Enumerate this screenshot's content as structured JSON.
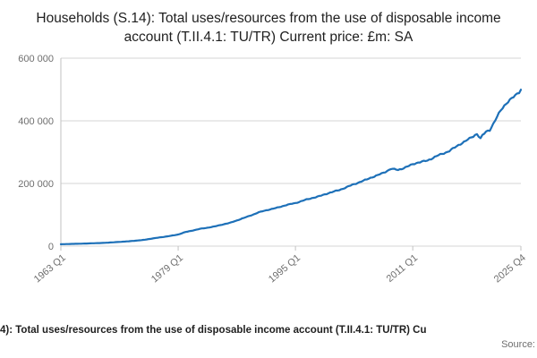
{
  "title": "Households (S.14): Total uses/resources from the use of disposable income account (T.II.4.1: TU/TR) Current price: £m: SA",
  "footer": {
    "caption": "4): Total uses/resources from the use of disposable income account (T.II.4.1: TU/TR) Cu",
    "source": "Source:"
  },
  "colors": {
    "line": "#1d70b8",
    "grid": "#d6d6d6",
    "axis": "#c2c2c2",
    "tick_text": "#6e6e6e",
    "title_text": "#1f1f1f"
  },
  "chart_data": {
    "type": "line",
    "title": "Households (S.14): Total uses/resources from the use of disposable income account (T.II.4.1: TU/TR) Current price: £m: SA",
    "ylabel": "",
    "xlabel": "",
    "unit": "£m",
    "grid": "horizontal",
    "legend": "none",
    "ylim": [
      0,
      600000
    ],
    "ytick_values": [
      0,
      200000,
      400000,
      600000
    ],
    "ytick_labels": [
      "0",
      "200 000",
      "400 000",
      "600 000"
    ],
    "x_range": [
      1963.0,
      2025.75
    ],
    "xticks": [
      {
        "label": "1963 Q1",
        "t": 1963.0
      },
      {
        "label": "1979 Q1",
        "t": 1979.0
      },
      {
        "label": "1995 Q1",
        "t": 1995.0
      },
      {
        "label": "2011 Q1",
        "t": 2011.0
      },
      {
        "label": "2025 Q4",
        "t": 2025.75
      }
    ],
    "frequency": "quarterly",
    "line_color": "#1d70b8",
    "series": [
      {
        "name": "Total uses/resources, current price £m, SA",
        "keyframes": [
          [
            1963.0,
            6000
          ],
          [
            1966.0,
            8000
          ],
          [
            1969.0,
            10500
          ],
          [
            1972.0,
            15000
          ],
          [
            1974.0,
            19000
          ],
          [
            1976.0,
            26000
          ],
          [
            1978.0,
            33000
          ],
          [
            1979.0,
            37000
          ],
          [
            1980.0,
            45000
          ],
          [
            1982.0,
            55000
          ],
          [
            1984.0,
            63000
          ],
          [
            1986.0,
            74000
          ],
          [
            1988.0,
            90000
          ],
          [
            1990.0,
            108000
          ],
          [
            1992.0,
            120000
          ],
          [
            1994.0,
            132000
          ],
          [
            1995.0,
            138000
          ],
          [
            1996.0,
            145000
          ],
          [
            1998.0,
            158000
          ],
          [
            2000.0,
            172000
          ],
          [
            2002.0,
            188000
          ],
          [
            2004.0,
            207000
          ],
          [
            2006.0,
            224000
          ],
          [
            2008.0,
            246000
          ],
          [
            2009.0,
            243000
          ],
          [
            2010.0,
            252000
          ],
          [
            2011.0,
            261000
          ],
          [
            2012.0,
            268000
          ],
          [
            2013.0,
            274000
          ],
          [
            2014.0,
            284000
          ],
          [
            2015.0,
            294000
          ],
          [
            2016.0,
            305000
          ],
          [
            2017.0,
            318000
          ],
          [
            2018.0,
            333000
          ],
          [
            2019.0,
            348000
          ],
          [
            2019.75,
            358000
          ],
          [
            2020.25,
            342000
          ],
          [
            2020.5,
            352000
          ],
          [
            2021.0,
            365000
          ],
          [
            2021.5,
            372000
          ],
          [
            2022.0,
            392000
          ],
          [
            2022.5,
            412000
          ],
          [
            2023.0,
            432000
          ],
          [
            2023.5,
            448000
          ],
          [
            2024.0,
            462000
          ],
          [
            2024.5,
            472000
          ],
          [
            2025.0,
            482000
          ],
          [
            2025.5,
            492000
          ],
          [
            2025.75,
            500000
          ]
        ]
      }
    ]
  }
}
